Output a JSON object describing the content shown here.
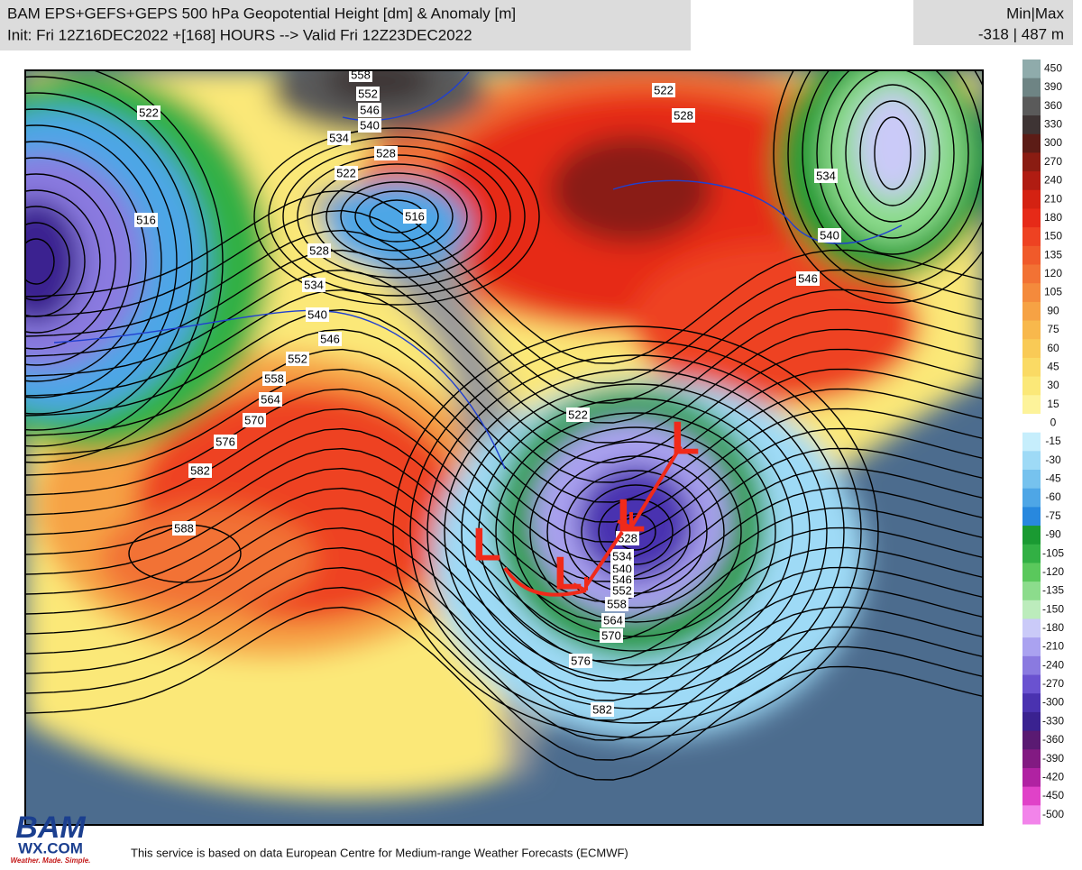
{
  "header": {
    "title": "BAM EPS+GEFS+GEPS 500 hPa Geopotential Height [dm] & Anomaly [m]",
    "subtitle": "Init: Fri 12Z16DEC2022 +[168] HOURS --> Valid Fri 12Z23DEC2022"
  },
  "minmax": {
    "label": "Min|Max",
    "value": "-318 | 487 m"
  },
  "colorbar": {
    "levels": [
      {
        "value": 450,
        "color": "#8fabab"
      },
      {
        "value": 390,
        "color": "#6e8484"
      },
      {
        "value": 360,
        "color": "#5a5a5a"
      },
      {
        "value": 330,
        "color": "#3e3434"
      },
      {
        "value": 300,
        "color": "#5c1c16"
      },
      {
        "value": 270,
        "color": "#8a1c12"
      },
      {
        "value": 240,
        "color": "#b01c12"
      },
      {
        "value": 210,
        "color": "#d42212"
      },
      {
        "value": 180,
        "color": "#e62a18"
      },
      {
        "value": 150,
        "color": "#ee4222"
      },
      {
        "value": 135,
        "color": "#f05a2a"
      },
      {
        "value": 120,
        "color": "#f27234"
      },
      {
        "value": 105,
        "color": "#f48a3c"
      },
      {
        "value": 90,
        "color": "#f6a244"
      },
      {
        "value": 75,
        "color": "#f8b84c"
      },
      {
        "value": 60,
        "color": "#f9ca56"
      },
      {
        "value": 45,
        "color": "#fada64"
      },
      {
        "value": 30,
        "color": "#fbe878"
      },
      {
        "value": 15,
        "color": "#fdf39a"
      },
      {
        "value": 0,
        "color": "#ffffff"
      },
      {
        "value": -15,
        "color": "#c6eefc"
      },
      {
        "value": -30,
        "color": "#9edaf6"
      },
      {
        "value": -45,
        "color": "#76c2ee"
      },
      {
        "value": -60,
        "color": "#4ea6e6"
      },
      {
        "value": -75,
        "color": "#2888de"
      },
      {
        "value": -90,
        "color": "#1a9a32"
      },
      {
        "value": -105,
        "color": "#32b044"
      },
      {
        "value": -120,
        "color": "#5ac85c"
      },
      {
        "value": -135,
        "color": "#8cdc8c"
      },
      {
        "value": -150,
        "color": "#bcecbc"
      },
      {
        "value": -180,
        "color": "#cacaf8"
      },
      {
        "value": -210,
        "color": "#aaa2f0"
      },
      {
        "value": -240,
        "color": "#8a7ae0"
      },
      {
        "value": -270,
        "color": "#6a52d0"
      },
      {
        "value": -300,
        "color": "#4a32b0"
      },
      {
        "value": -330,
        "color": "#3a2290"
      },
      {
        "value": -360,
        "color": "#5a1a72"
      },
      {
        "value": -390,
        "color": "#821a82"
      },
      {
        "value": -420,
        "color": "#b022a2"
      },
      {
        "value": -450,
        "color": "#e042c8"
      },
      {
        "value": -500,
        "color": "#f284ea"
      }
    ]
  },
  "contour_labels": [
    558,
    552,
    546,
    540,
    534,
    528,
    522,
    522,
    516,
    516,
    528,
    534,
    540,
    546,
    552,
    558,
    564,
    570,
    576,
    582,
    588,
    522,
    528,
    534,
    540,
    546,
    552,
    558,
    564,
    570,
    576,
    582,
    522,
    528,
    534,
    540,
    546
  ],
  "annotations": [
    "L",
    "L",
    "L",
    "L"
  ],
  "footer": "This service is based on data European Centre for Medium-range Weather Forecasts (ECMWF)",
  "logo": {
    "name": "BAM",
    "site": "WX.COM",
    "tagline": "Weather. Made. Simple."
  }
}
